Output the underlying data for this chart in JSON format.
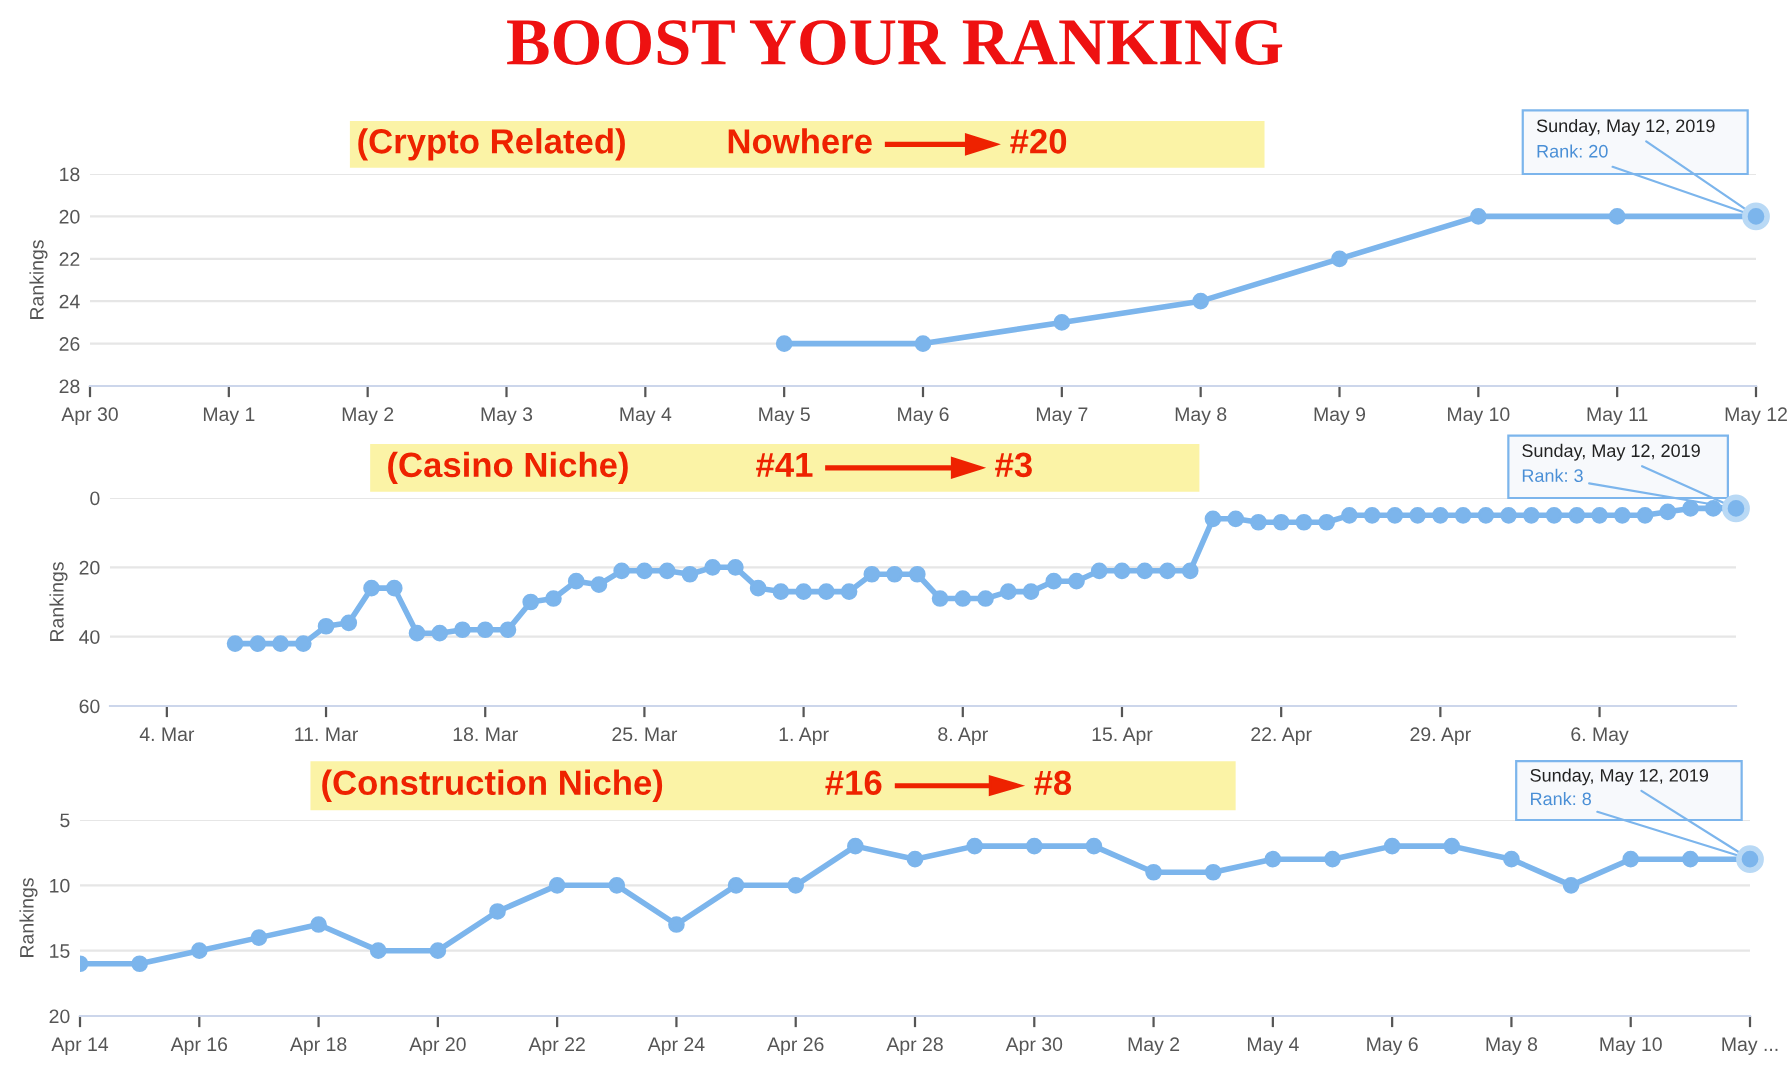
{
  "chart_data": [
    {
      "type": "line",
      "title": "BOOST YOUR RANKING",
      "ylabel": "Rankings",
      "grid": "y",
      "marker": "circle",
      "line_style": "solid",
      "legend": false,
      "annotations": [
        "(Crypto Related)",
        "Nowhere",
        "#20",
        {
          "text": "Sunday, May 12, 2019",
          "x": "2019-05-12",
          "y": 20
        },
        {
          "text": "Rank: 20",
          "x": "2019-05-12",
          "y": 20
        }
      ],
      "xlim": [
        "2019-04-30",
        "2019-05-12"
      ],
      "ylim": [
        28,
        18
      ],
      "yticks": [
        18,
        20,
        22,
        24,
        26,
        28
      ],
      "xticks": [
        {
          "value": "2019-04-30",
          "label": "Apr 30"
        },
        {
          "value": "2019-05-01",
          "label": "May 1"
        },
        {
          "value": "2019-05-02",
          "label": "May 2"
        },
        {
          "value": "2019-05-03",
          "label": "May 3"
        },
        {
          "value": "2019-05-04",
          "label": "May 4"
        },
        {
          "value": "2019-05-05",
          "label": "May 5"
        },
        {
          "value": "2019-05-06",
          "label": "May 6"
        },
        {
          "value": "2019-05-07",
          "label": "May 7"
        },
        {
          "value": "2019-05-08",
          "label": "May 8"
        },
        {
          "value": "2019-05-09",
          "label": "May 9"
        },
        {
          "value": "2019-05-10",
          "label": "May 10"
        },
        {
          "value": "2019-05-11",
          "label": "May 11"
        },
        {
          "value": "2019-05-12",
          "label": "May 12"
        }
      ],
      "series": [
        {
          "color": "#7cb5ec",
          "x": [
            "2019-05-05",
            "2019-05-06",
            "2019-05-07",
            "2019-05-08",
            "2019-05-09",
            "2019-05-10",
            "2019-05-11",
            "2019-05-12"
          ],
          "values": [
            26,
            26,
            25,
            24,
            22,
            20,
            20,
            20
          ]
        }
      ]
    },
    {
      "type": "line",
      "ylabel": "Rankings",
      "grid": "y",
      "marker": "circle",
      "line_style": "solid",
      "legend": false,
      "annotations": [
        "(Casino Niche)",
        "#41",
        "#3",
        {
          "text": "Sunday, May 12, 2019",
          "x": "2019-05-12",
          "y": 3
        },
        {
          "text": "Rank: 3",
          "x": "2019-05-12",
          "y": 3
        }
      ],
      "xlim": [
        "2019-03-01T12:00",
        "2019-05-12"
      ],
      "ylim": [
        60,
        0
      ],
      "yticks": [
        0,
        20,
        40,
        60
      ],
      "xticks": [
        {
          "value": "2019-03-04",
          "label": "4. Mar"
        },
        {
          "value": "2019-03-11",
          "label": "11. Mar"
        },
        {
          "value": "2019-03-18",
          "label": "18. Mar"
        },
        {
          "value": "2019-03-25",
          "label": "25. Mar"
        },
        {
          "value": "2019-04-01",
          "label": "1. Apr"
        },
        {
          "value": "2019-04-08",
          "label": "8. Apr"
        },
        {
          "value": "2019-04-15",
          "label": "15. Apr"
        },
        {
          "value": "2019-04-22",
          "label": "22. Apr"
        },
        {
          "value": "2019-04-29",
          "label": "29. Apr"
        },
        {
          "value": "2019-05-06",
          "label": "6. May"
        }
      ],
      "series": [
        {
          "color": "#7cb5ec",
          "x": [
            "2019-03-07",
            "2019-03-08",
            "2019-03-09",
            "2019-03-10",
            "2019-03-11",
            "2019-03-12",
            "2019-03-13",
            "2019-03-14",
            "2019-03-15",
            "2019-03-16",
            "2019-03-17",
            "2019-03-18",
            "2019-03-19",
            "2019-03-20",
            "2019-03-21",
            "2019-03-22",
            "2019-03-23",
            "2019-03-24",
            "2019-03-25",
            "2019-03-26",
            "2019-03-27",
            "2019-03-28",
            "2019-03-29",
            "2019-03-30",
            "2019-03-31",
            "2019-04-01",
            "2019-04-02",
            "2019-04-03",
            "2019-04-04",
            "2019-04-05",
            "2019-04-06",
            "2019-04-07",
            "2019-04-08",
            "2019-04-09",
            "2019-04-10",
            "2019-04-11",
            "2019-04-12",
            "2019-04-13",
            "2019-04-14",
            "2019-04-15",
            "2019-04-16",
            "2019-04-17",
            "2019-04-18",
            "2019-04-19",
            "2019-04-20",
            "2019-04-21",
            "2019-04-22",
            "2019-04-23",
            "2019-04-24",
            "2019-04-25",
            "2019-04-26",
            "2019-04-27",
            "2019-04-28",
            "2019-04-29",
            "2019-04-30",
            "2019-05-01",
            "2019-05-02",
            "2019-05-03",
            "2019-05-04",
            "2019-05-05",
            "2019-05-06",
            "2019-05-07",
            "2019-05-08",
            "2019-05-09",
            "2019-05-10",
            "2019-05-11",
            "2019-05-12"
          ],
          "values": [
            42,
            42,
            42,
            42,
            37,
            36,
            26,
            26,
            39,
            39,
            38,
            38,
            38,
            30,
            29,
            24,
            25,
            21,
            21,
            21,
            22,
            20,
            20,
            26,
            27,
            27,
            27,
            27,
            22,
            22,
            22,
            29,
            29,
            29,
            27,
            27,
            24,
            24,
            21,
            21,
            21,
            21,
            21,
            6,
            6,
            7,
            7,
            7,
            7,
            5,
            5,
            5,
            5,
            5,
            5,
            5,
            5,
            5,
            5,
            5,
            5,
            5,
            5,
            4,
            3,
            3,
            3
          ]
        }
      ]
    },
    {
      "type": "line",
      "ylabel": "Rankings",
      "grid": "y",
      "marker": "circle",
      "line_style": "solid",
      "legend": false,
      "annotations": [
        "(Construction Niche)",
        "#16",
        "#8",
        {
          "text": "Sunday, May 12, 2019",
          "x": "2019-05-12",
          "y": 8
        },
        {
          "text": "Rank: 8",
          "x": "2019-05-12",
          "y": 8
        }
      ],
      "xlim": [
        "2019-04-14",
        "2019-05-12"
      ],
      "ylim": [
        20,
        5
      ],
      "yticks": [
        5,
        10,
        15,
        20
      ],
      "xticks": [
        {
          "value": "2019-04-14",
          "label": "Apr 14"
        },
        {
          "value": "2019-04-16",
          "label": "Apr 16"
        },
        {
          "value": "2019-04-18",
          "label": "Apr 18"
        },
        {
          "value": "2019-04-20",
          "label": "Apr 20"
        },
        {
          "value": "2019-04-22",
          "label": "Apr 22"
        },
        {
          "value": "2019-04-24",
          "label": "Apr 24"
        },
        {
          "value": "2019-04-26",
          "label": "Apr 26"
        },
        {
          "value": "2019-04-28",
          "label": "Apr 28"
        },
        {
          "value": "2019-04-30",
          "label": "Apr 30"
        },
        {
          "value": "2019-05-02",
          "label": "May 2"
        },
        {
          "value": "2019-05-04",
          "label": "May 4"
        },
        {
          "value": "2019-05-06",
          "label": "May 6"
        },
        {
          "value": "2019-05-08",
          "label": "May 8"
        },
        {
          "value": "2019-05-10",
          "label": "May 10"
        },
        {
          "value": "2019-05-12",
          "label": "May ..."
        }
      ],
      "series": [
        {
          "color": "#7cb5ec",
          "x": [
            "2019-04-14",
            "2019-04-15",
            "2019-04-16",
            "2019-04-17",
            "2019-04-18",
            "2019-04-19",
            "2019-04-20",
            "2019-04-21",
            "2019-04-22",
            "2019-04-23",
            "2019-04-24",
            "2019-04-25",
            "2019-04-26",
            "2019-04-27",
            "2019-04-28",
            "2019-04-29",
            "2019-04-30",
            "2019-05-01",
            "2019-05-02",
            "2019-05-03",
            "2019-05-04",
            "2019-05-05",
            "2019-05-06",
            "2019-05-07",
            "2019-05-08",
            "2019-05-09",
            "2019-05-10",
            "2019-05-11",
            "2019-05-12"
          ],
          "values": [
            16,
            16,
            15,
            14,
            13,
            15,
            15,
            12,
            10,
            10,
            13,
            10,
            10,
            7,
            8,
            7,
            7,
            7,
            9,
            9,
            8,
            8,
            7,
            7,
            8,
            10,
            8,
            8,
            8
          ]
        }
      ]
    }
  ]
}
